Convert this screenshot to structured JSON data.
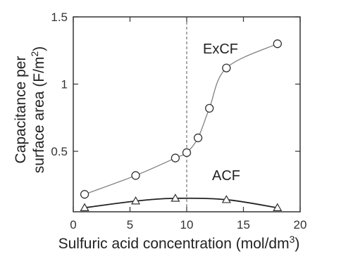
{
  "chart_data": {
    "type": "line",
    "xlabel_text": "Sulfuric acid concentration (mol/dm",
    "xlabel_sup": "3",
    "xlabel_close": ")",
    "ylabel_line1": "Capacitance per",
    "ylabel_line2_text": "surface area (F/m",
    "ylabel_line2_sup": "2",
    "ylabel_line2_close": ")",
    "xlim": [
      0,
      20
    ],
    "ylim": [
      0.05,
      1.5
    ],
    "x_ticks": [
      0,
      5,
      10,
      15,
      20
    ],
    "x_tick_labels": [
      "0",
      "5",
      "10",
      "15",
      "20"
    ],
    "y_ticks": [
      0.5,
      1,
      1.5
    ],
    "y_tick_labels": [
      "0.5",
      "1",
      "1.5"
    ],
    "vline_x": 10,
    "series": [
      {
        "name": "ExCF",
        "marker": "circle",
        "color": "#808080",
        "x": [
          1,
          5.5,
          9,
          10,
          11,
          12,
          13.5,
          18
        ],
        "y": [
          0.18,
          0.32,
          0.45,
          0.49,
          0.6,
          0.82,
          1.12,
          1.3
        ]
      },
      {
        "name": "ACF",
        "marker": "triangle",
        "color": "#222222",
        "x": [
          1,
          5.5,
          9,
          13.5,
          18
        ],
        "y": [
          0.08,
          0.13,
          0.15,
          0.14,
          0.08
        ]
      }
    ]
  }
}
